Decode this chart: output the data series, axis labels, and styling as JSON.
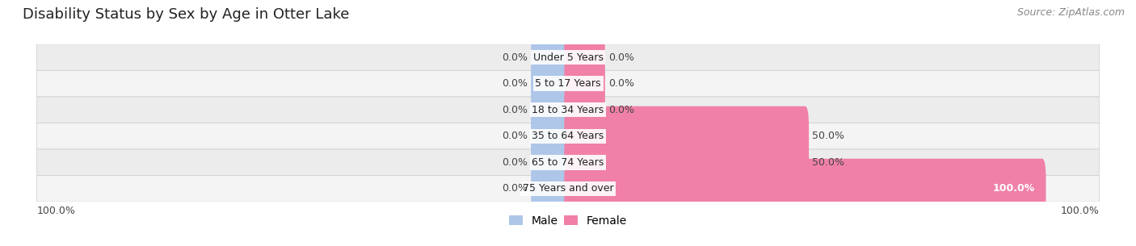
{
  "title": "Disability Status by Sex by Age in Otter Lake",
  "source": "Source: ZipAtlas.com",
  "categories": [
    "Under 5 Years",
    "5 to 17 Years",
    "18 to 34 Years",
    "35 to 64 Years",
    "65 to 74 Years",
    "75 Years and over"
  ],
  "male_values": [
    0.0,
    0.0,
    0.0,
    0.0,
    0.0,
    0.0
  ],
  "female_values": [
    0.0,
    0.0,
    0.0,
    50.0,
    50.0,
    100.0
  ],
  "male_color": "#aec6e8",
  "female_color": "#f080a8",
  "row_colors": [
    "#ececec",
    "#f4f4f4"
  ],
  "max_value": 100.0,
  "title_fontsize": 13,
  "source_fontsize": 9,
  "label_fontsize": 9,
  "category_fontsize": 9,
  "bottom_left_label": "100.0%",
  "bottom_right_label": "100.0%"
}
